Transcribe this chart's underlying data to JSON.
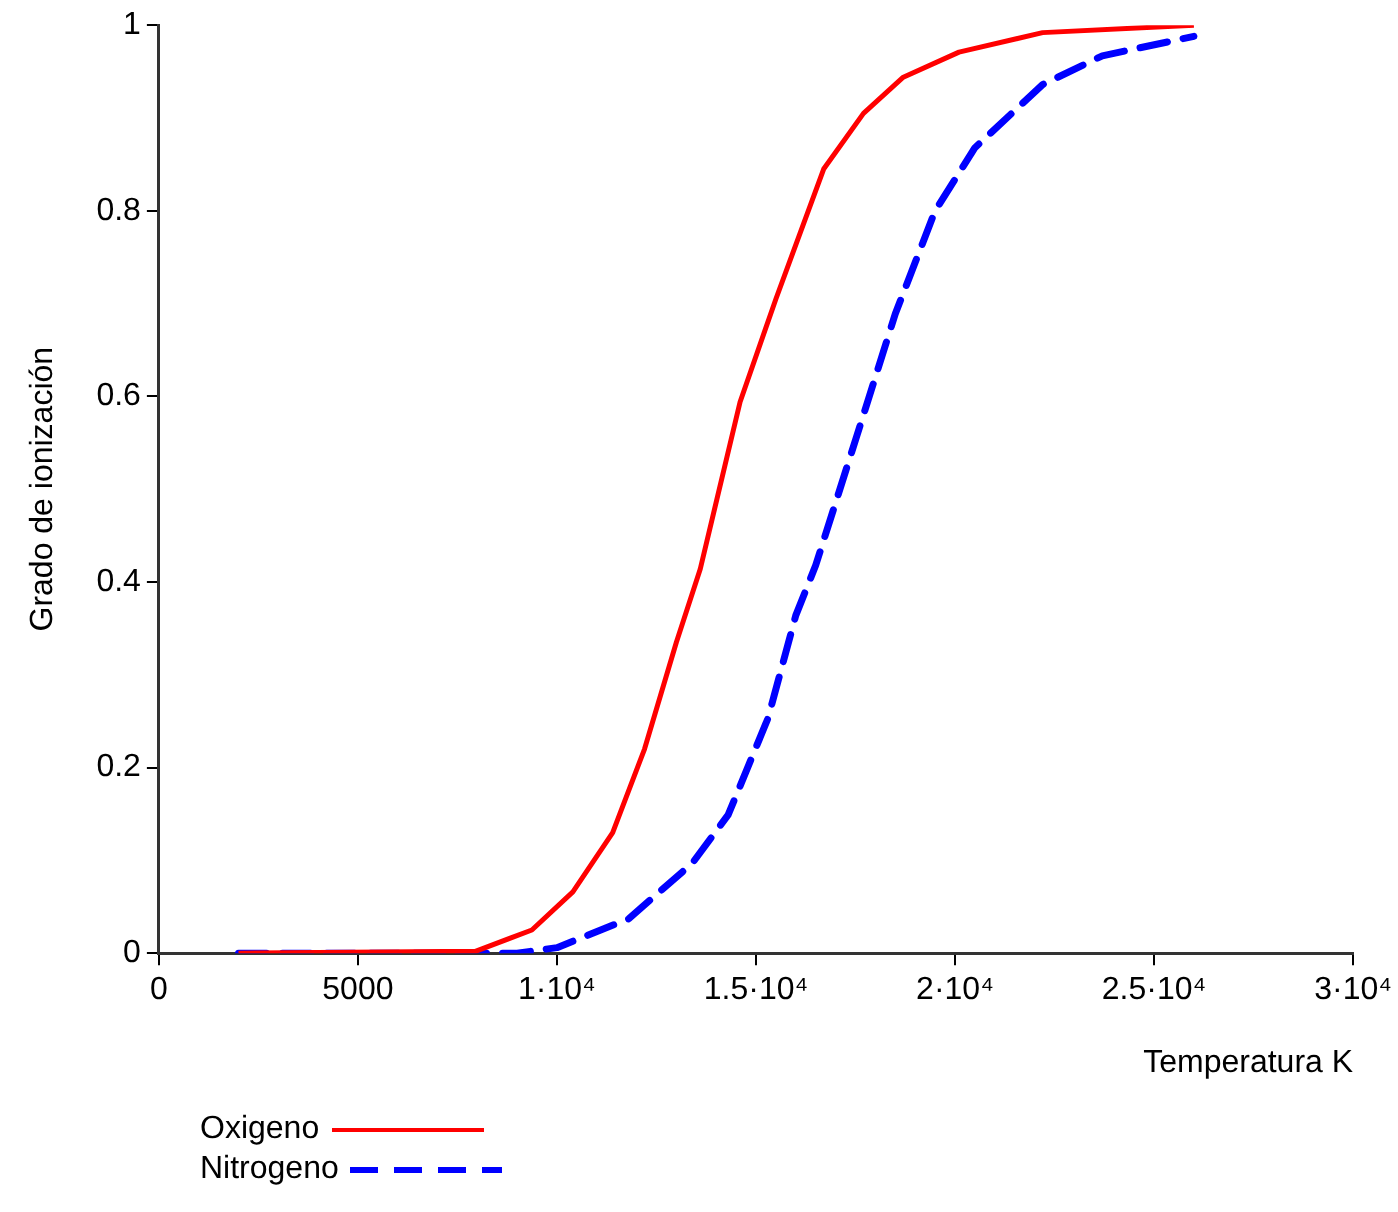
{
  "chart_data": {
    "type": "line",
    "xlabel": "Temperatura K",
    "ylabel": "Grado de ionización",
    "xlim": [
      0,
      30000
    ],
    "xticks": [
      0,
      5000,
      {
        "value": 10000,
        "label": "1·10⁴"
      },
      {
        "value": 15000,
        "label": "1.5·10⁴"
      },
      {
        "value": 20000,
        "label": "2·10⁴"
      },
      {
        "value": 25000,
        "label": "2.5·10⁴"
      },
      {
        "value": 30000,
        "label": "3·10⁴"
      }
    ],
    "ylim": [
      0,
      1
    ],
    "yticks": [
      0,
      0.2,
      0.4,
      0.6,
      0.8,
      1
    ],
    "grid": false,
    "legend": "bottom left",
    "marker": "none",
    "series": [
      {
        "name": "Oxigeno",
        "color": "#ff0000",
        "line_style": "solid",
        "x": [
          2000,
          7950,
          9370,
          10400,
          11400,
          12200,
          13000,
          13600,
          14600,
          15500,
          16700,
          17700,
          18700,
          20100,
          22200,
          26000
        ],
        "values": [
          0,
          0.002,
          0.025,
          0.066,
          0.13,
          0.22,
          0.335,
          0.414,
          0.594,
          0.705,
          0.845,
          0.905,
          0.944,
          0.971,
          0.992,
          1.0
        ]
      },
      {
        "name": "Nitrogeno",
        "color": "#0000ff",
        "line_style": "dashed",
        "x": [
          2000,
          9000,
          10000,
          11800,
          13400,
          14300,
          15300,
          16000,
          16500,
          17500,
          18500,
          19500,
          20500,
          22200,
          23700,
          26000
        ],
        "values": [
          0,
          0,
          0.006,
          0.037,
          0.097,
          0.149,
          0.253,
          0.364,
          0.418,
          0.553,
          0.689,
          0.8,
          0.868,
          0.936,
          0.967,
          0.988
        ]
      }
    ]
  }
}
